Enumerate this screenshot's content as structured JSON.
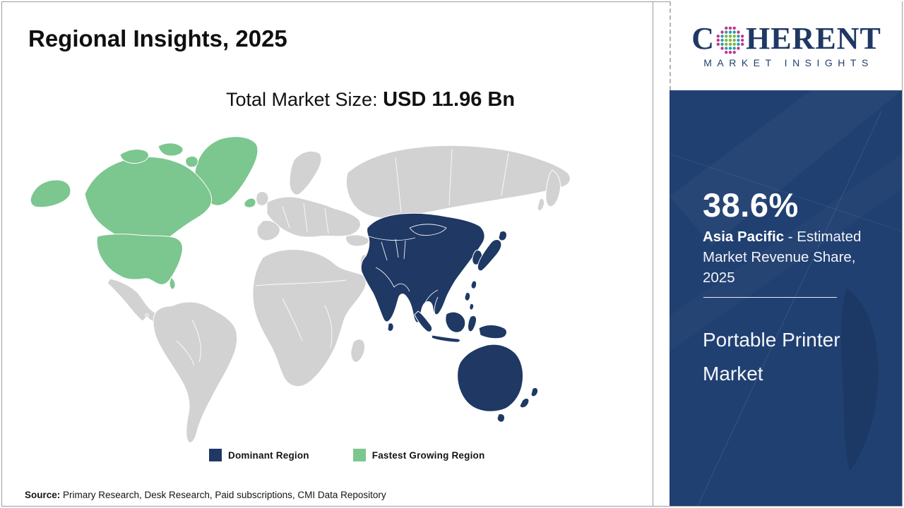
{
  "page": {
    "title": "Regional Insights, 2025",
    "market_size_label": "Total Market Size: ",
    "market_size_value": "USD 11.96 Bn"
  },
  "map": {
    "type": "choropleth-world",
    "dominant_region": "Asia Pacific",
    "fastest_growing_region": "North America",
    "colors": {
      "dominant": "#1f3864",
      "fastest_growing": "#7cc68f",
      "other": "#d2d2d2"
    }
  },
  "legend": {
    "items": [
      {
        "label": "Dominant Region",
        "color": "#1f3864"
      },
      {
        "label": "Fastest Growing Region",
        "color": "#7cc68f"
      }
    ]
  },
  "source": {
    "label": "Source:",
    "text": " Primary Research, Desk Research, Paid subscriptions, CMI Data Repository"
  },
  "sidebar": {
    "logo": {
      "text_c": "C",
      "text_rest": "HERENT",
      "tagline": "MARKET INSIGHTS"
    },
    "share_value": "38.6%",
    "share_region": "Asia Pacific",
    "share_desc": " - Estimated Market Revenue Share, 2025",
    "market_name": "Portable Printer Market"
  }
}
